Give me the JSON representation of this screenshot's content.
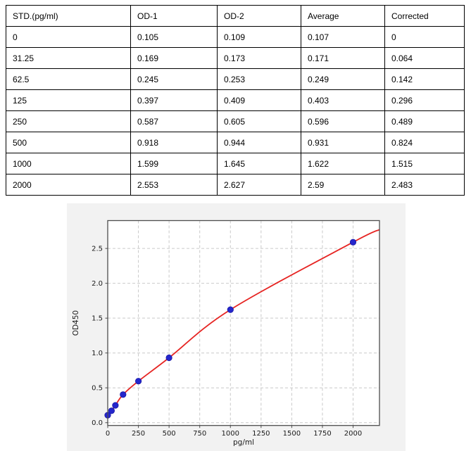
{
  "table": {
    "columns": [
      "STD.(pg/ml)",
      "OD-1",
      "OD-2",
      "Average",
      "Corrected"
    ],
    "rows": [
      [
        "0",
        "0.105",
        "0.109",
        "0.107",
        "0"
      ],
      [
        "31.25",
        "0.169",
        "0.173",
        "0.171",
        "0.064"
      ],
      [
        "62.5",
        "0.245",
        "0.253",
        "0.249",
        "0.142"
      ],
      [
        "125",
        "0.397",
        "0.409",
        "0.403",
        "0.296"
      ],
      [
        "250",
        "0.587",
        "0.605",
        "0.596",
        "0.489"
      ],
      [
        "500",
        "0.918",
        "0.944",
        "0.931",
        "0.824"
      ],
      [
        "1000",
        "1.599",
        "1.645",
        "1.622",
        "1.515"
      ],
      [
        "2000",
        "2.553",
        "2.627",
        "2.59",
        "2.483"
      ]
    ]
  },
  "chart_data": {
    "type": "scatter",
    "title": "",
    "xlabel": "pg/ml",
    "ylabel": "OD450",
    "xlim": [
      0,
      2215
    ],
    "ylim": [
      -0.04,
      2.9
    ],
    "grid": true,
    "legend": "none",
    "x_ticks": [
      0,
      250,
      500,
      750,
      1000,
      1250,
      1500,
      1750,
      2000
    ],
    "x_tick_labels": [
      "0",
      "250",
      "500",
      "750",
      "1000",
      "1250",
      "1500",
      "1750",
      "2000"
    ],
    "y_ticks": [
      0,
      0.5,
      1.0,
      1.5,
      2.0,
      2.5
    ],
    "y_tick_labels": [
      "0.0",
      "0.5",
      "1.0",
      "1.5",
      "2.0",
      "2.5"
    ],
    "series": [
      {
        "name": "standard-points",
        "type": "scatter",
        "color": "#2526cc",
        "x": [
          0,
          31.25,
          62.5,
          125,
          250,
          500,
          1000,
          2000
        ],
        "y": [
          0.107,
          0.171,
          0.249,
          0.403,
          0.596,
          0.931,
          1.622,
          2.59
        ]
      },
      {
        "name": "fit-curve",
        "type": "line",
        "color": "#e62422",
        "through_scatter": true,
        "end_point": {
          "x": 2215,
          "y": 2.77
        }
      }
    ],
    "colors": {
      "figure_bg": "#f2f2f2",
      "plot_bg": "#ffffff",
      "grid": "#c9c9c9",
      "spine": "#4d4d4d",
      "tick_text": "#1a1a1a"
    }
  }
}
